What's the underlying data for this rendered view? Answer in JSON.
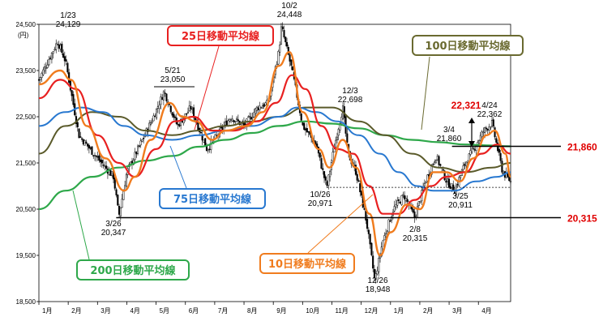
{
  "chart_data": {
    "type": "line",
    "unit": "(円)",
    "y_ticks": [
      "24,500",
      "23,500",
      "22,500",
      "21,500",
      "20,500",
      "19,500",
      "18,500"
    ],
    "ylim": [
      18500,
      24500
    ],
    "x_months": [
      "1月",
      "2月",
      "3月",
      "4月",
      "5月",
      "6月",
      "7月",
      "8月",
      "9月",
      "10月",
      "11月",
      "12月",
      "1月",
      "2月",
      "3月",
      "4月"
    ],
    "close_keypoints": [
      {
        "m": 0.0,
        "v": 23300
      },
      {
        "m": 0.7,
        "v": 24129
      },
      {
        "m": 1.0,
        "v": 23700
      },
      {
        "m": 1.5,
        "v": 22100
      },
      {
        "m": 2.2,
        "v": 21600
      },
      {
        "m": 2.8,
        "v": 21200
      },
      {
        "m": 3.0,
        "v": 20347
      },
      {
        "m": 3.3,
        "v": 21300
      },
      {
        "m": 3.8,
        "v": 21900
      },
      {
        "m": 4.3,
        "v": 22500
      },
      {
        "m": 4.7,
        "v": 23050
      },
      {
        "m": 5.2,
        "v": 22300
      },
      {
        "m": 5.7,
        "v": 22700
      },
      {
        "m": 6.3,
        "v": 21800
      },
      {
        "m": 6.7,
        "v": 22100
      },
      {
        "m": 7.2,
        "v": 22500
      },
      {
        "m": 7.7,
        "v": 22300
      },
      {
        "m": 8.2,
        "v": 22700
      },
      {
        "m": 8.6,
        "v": 22800
      },
      {
        "m": 9.0,
        "v": 23900
      },
      {
        "m": 9.1,
        "v": 24448
      },
      {
        "m": 9.5,
        "v": 23500
      },
      {
        "m": 9.9,
        "v": 22300
      },
      {
        "m": 10.4,
        "v": 21900
      },
      {
        "m": 10.8,
        "v": 20971
      },
      {
        "m": 11.1,
        "v": 21900
      },
      {
        "m": 11.4,
        "v": 22698
      },
      {
        "m": 11.6,
        "v": 21700
      },
      {
        "m": 11.9,
        "v": 21300
      },
      {
        "m": 12.3,
        "v": 20200
      },
      {
        "m": 12.6,
        "v": 18948
      },
      {
        "m": 12.9,
        "v": 19800
      },
      {
        "m": 13.3,
        "v": 20500
      },
      {
        "m": 13.7,
        "v": 20800
      },
      {
        "m": 14.1,
        "v": 20315
      },
      {
        "m": 14.5,
        "v": 21100
      },
      {
        "m": 14.9,
        "v": 21650
      },
      {
        "m": 15.3,
        "v": 21100
      },
      {
        "m": 15.6,
        "v": 20911
      },
      {
        "m": 16.0,
        "v": 21500
      },
      {
        "m": 16.4,
        "v": 21900
      },
      {
        "m": 16.7,
        "v": 22200
      },
      {
        "m": 17.0,
        "v": 22362
      },
      {
        "m": 17.4,
        "v": 21300
      },
      {
        "m": 17.7,
        "v": 21100
      }
    ],
    "ma10": [
      {
        "m": 0.0,
        "v": 23200
      },
      {
        "m": 0.8,
        "v": 23500
      },
      {
        "m": 1.2,
        "v": 23300
      },
      {
        "m": 1.8,
        "v": 22300
      },
      {
        "m": 2.5,
        "v": 21600
      },
      {
        "m": 3.2,
        "v": 20900
      },
      {
        "m": 3.6,
        "v": 21200
      },
      {
        "m": 4.2,
        "v": 22000
      },
      {
        "m": 4.9,
        "v": 22800
      },
      {
        "m": 5.4,
        "v": 22500
      },
      {
        "m": 5.9,
        "v": 22400
      },
      {
        "m": 6.5,
        "v": 22000
      },
      {
        "m": 7.0,
        "v": 22200
      },
      {
        "m": 7.8,
        "v": 22300
      },
      {
        "m": 8.4,
        "v": 22600
      },
      {
        "m": 9.0,
        "v": 23600
      },
      {
        "m": 9.4,
        "v": 23900
      },
      {
        "m": 9.9,
        "v": 22600
      },
      {
        "m": 10.5,
        "v": 21800
      },
      {
        "m": 10.9,
        "v": 21400
      },
      {
        "m": 11.4,
        "v": 22000
      },
      {
        "m": 11.9,
        "v": 21400
      },
      {
        "m": 12.4,
        "v": 20400
      },
      {
        "m": 12.8,
        "v": 19500
      },
      {
        "m": 13.2,
        "v": 20000
      },
      {
        "m": 13.8,
        "v": 20600
      },
      {
        "m": 14.3,
        "v": 20500
      },
      {
        "m": 14.8,
        "v": 21300
      },
      {
        "m": 15.3,
        "v": 21300
      },
      {
        "m": 15.8,
        "v": 21100
      },
      {
        "m": 16.3,
        "v": 21600
      },
      {
        "m": 16.8,
        "v": 22100
      },
      {
        "m": 17.1,
        "v": 22200
      },
      {
        "m": 17.5,
        "v": 21700
      },
      {
        "m": 17.7,
        "v": 21200
      }
    ],
    "ma25": [
      {
        "m": 0.0,
        "v": 22900
      },
      {
        "m": 0.8,
        "v": 23300
      },
      {
        "m": 1.4,
        "v": 23100
      },
      {
        "m": 2.2,
        "v": 22100
      },
      {
        "m": 3.0,
        "v": 21500
      },
      {
        "m": 3.6,
        "v": 21200
      },
      {
        "m": 4.4,
        "v": 21800
      },
      {
        "m": 5.1,
        "v": 22400
      },
      {
        "m": 5.8,
        "v": 22500
      },
      {
        "m": 6.5,
        "v": 22200
      },
      {
        "m": 7.3,
        "v": 22200
      },
      {
        "m": 8.2,
        "v": 22400
      },
      {
        "m": 8.9,
        "v": 22800
      },
      {
        "m": 9.5,
        "v": 23400
      },
      {
        "m": 10.0,
        "v": 23100
      },
      {
        "m": 10.6,
        "v": 22300
      },
      {
        "m": 11.2,
        "v": 21800
      },
      {
        "m": 11.8,
        "v": 21700
      },
      {
        "m": 12.4,
        "v": 21000
      },
      {
        "m": 12.9,
        "v": 20400
      },
      {
        "m": 13.5,
        "v": 20400
      },
      {
        "m": 14.1,
        "v": 20700
      },
      {
        "m": 14.7,
        "v": 21000
      },
      {
        "m": 15.3,
        "v": 21200
      },
      {
        "m": 16.0,
        "v": 21300
      },
      {
        "m": 16.6,
        "v": 21700
      },
      {
        "m": 17.2,
        "v": 21900
      },
      {
        "m": 17.7,
        "v": 21700
      }
    ],
    "ma75": [
      {
        "m": 0.0,
        "v": 22300
      },
      {
        "m": 1.0,
        "v": 22600
      },
      {
        "m": 1.6,
        "v": 22700
      },
      {
        "m": 2.4,
        "v": 22600
      },
      {
        "m": 3.2,
        "v": 22300
      },
      {
        "m": 4.0,
        "v": 22100
      },
      {
        "m": 5.0,
        "v": 22000
      },
      {
        "m": 6.0,
        "v": 22100
      },
      {
        "m": 7.0,
        "v": 22200
      },
      {
        "m": 8.0,
        "v": 22300
      },
      {
        "m": 9.0,
        "v": 22500
      },
      {
        "m": 9.7,
        "v": 22700
      },
      {
        "m": 10.4,
        "v": 22600
      },
      {
        "m": 11.2,
        "v": 22400
      },
      {
        "m": 12.0,
        "v": 22100
      },
      {
        "m": 12.8,
        "v": 21700
      },
      {
        "m": 13.5,
        "v": 21300
      },
      {
        "m": 14.2,
        "v": 21000
      },
      {
        "m": 14.8,
        "v": 20900
      },
      {
        "m": 15.6,
        "v": 20900
      },
      {
        "m": 16.4,
        "v": 21100
      },
      {
        "m": 17.2,
        "v": 21200
      },
      {
        "m": 17.7,
        "v": 21300
      }
    ],
    "ma100": [
      {
        "m": 0.0,
        "v": 21700
      },
      {
        "m": 1.0,
        "v": 22300
      },
      {
        "m": 2.0,
        "v": 22600
      },
      {
        "m": 3.0,
        "v": 22500
      },
      {
        "m": 4.0,
        "v": 22200
      },
      {
        "m": 5.0,
        "v": 22100
      },
      {
        "m": 6.0,
        "v": 22200
      },
      {
        "m": 7.0,
        "v": 22300
      },
      {
        "m": 8.0,
        "v": 22400
      },
      {
        "m": 9.0,
        "v": 22500
      },
      {
        "m": 10.0,
        "v": 22700
      },
      {
        "m": 11.0,
        "v": 22700
      },
      {
        "m": 12.0,
        "v": 22400
      },
      {
        "m": 13.0,
        "v": 22100
      },
      {
        "m": 14.0,
        "v": 21700
      },
      {
        "m": 15.0,
        "v": 21400
      },
      {
        "m": 16.0,
        "v": 21300
      },
      {
        "m": 17.0,
        "v": 21400
      },
      {
        "m": 17.7,
        "v": 21500
      }
    ],
    "ma200": [
      {
        "m": 0.0,
        "v": 20500
      },
      {
        "m": 1.0,
        "v": 20900
      },
      {
        "m": 2.0,
        "v": 21200
      },
      {
        "m": 3.0,
        "v": 21400
      },
      {
        "m": 4.0,
        "v": 21550
      },
      {
        "m": 5.0,
        "v": 21650
      },
      {
        "m": 6.0,
        "v": 21850
      },
      {
        "m": 7.0,
        "v": 22000
      },
      {
        "m": 8.0,
        "v": 22150
      },
      {
        "m": 9.0,
        "v": 22300
      },
      {
        "m": 10.0,
        "v": 22400
      },
      {
        "m": 11.0,
        "v": 22350
      },
      {
        "m": 12.0,
        "v": 22250
      },
      {
        "m": 13.0,
        "v": 22100
      },
      {
        "m": 14.0,
        "v": 22000
      },
      {
        "m": 15.0,
        "v": 21950
      },
      {
        "m": 16.0,
        "v": 21900
      },
      {
        "m": 16.8,
        "v": 21880
      },
      {
        "m": 17.7,
        "v": 21860
      }
    ],
    "series_names": {
      "ma10": "10日移動平均線",
      "ma25": "25日移動平均線",
      "ma75": "75日移動平均線",
      "ma100": "100日移動平均線",
      "ma200": "200日移動平均線"
    },
    "series_colors": {
      "candle": "#000000",
      "ma10": "#f07c1e",
      "ma25": "#e82020",
      "ma75": "#2878d0",
      "ma100": "#5a5a2a",
      "ma200": "#2ea84a"
    },
    "annotations": [
      {
        "date": "1/23",
        "value": "24,129"
      },
      {
        "date": "5/21",
        "value": "23,050"
      },
      {
        "date": "10/2",
        "value": "24,448"
      },
      {
        "date": "12/3",
        "value": "22,698"
      },
      {
        "date": "3/26",
        "value": "20,347"
      },
      {
        "date": "10/26",
        "value": "20,971"
      },
      {
        "date": "12/26",
        "value": "18,948"
      },
      {
        "date": "2/8",
        "value": "20,315"
      },
      {
        "date": "3/4",
        "value": "21,860"
      },
      {
        "date": "3/25",
        "value": "20,911"
      },
      {
        "date": "4/24",
        "value": "22,362"
      }
    ],
    "reference_lines": [
      {
        "label": "21,860",
        "value": 21860
      },
      {
        "label": "20,315",
        "value": 20315
      }
    ],
    "highlight_value": "22,321"
  }
}
